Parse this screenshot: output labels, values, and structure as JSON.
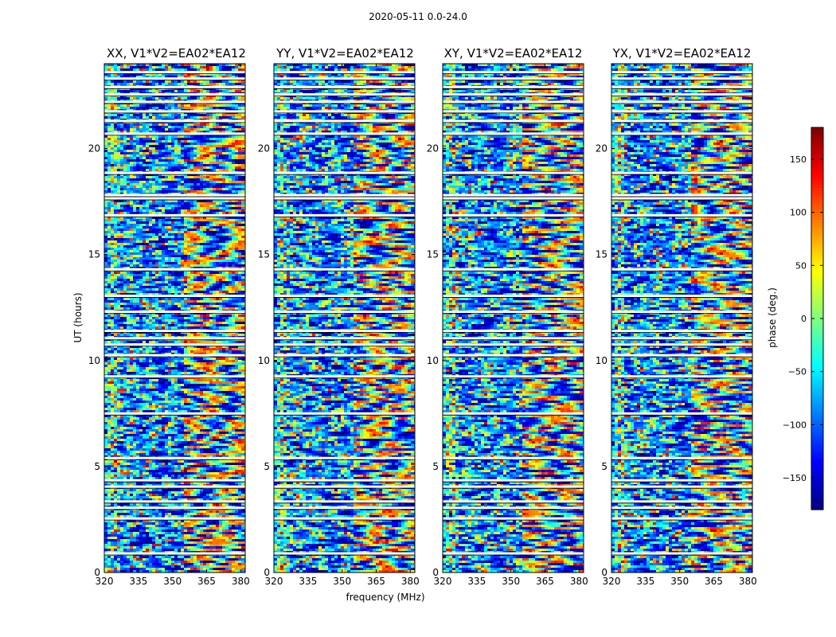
{
  "chart_data": {
    "type": "heatmap",
    "title": "2020-05-11 0.0-24.0",
    "xlabel": "frequency (MHz)",
    "ylabel": "UT (hours)",
    "x_ticks": [
      "320",
      "335",
      "350",
      "365",
      "380"
    ],
    "y_ticks": [
      "0",
      "5",
      "10",
      "15",
      "20"
    ],
    "xlim": [
      320,
      382
    ],
    "ylim": [
      0,
      24
    ],
    "panels": [
      {
        "title": "XX, V1*V2=EA02*EA12"
      },
      {
        "title": "YY, V1*V2=EA02*EA12"
      },
      {
        "title": "XY, V1*V2=EA02*EA12"
      },
      {
        "title": "YX, V1*V2=EA02*EA12"
      }
    ],
    "colorbar": {
      "label": "phase (deg.)",
      "colormap": "jet",
      "range": [
        -180,
        180
      ],
      "ticks": [
        "150",
        "100",
        "50",
        "0",
        "−50",
        "−100",
        "−150"
      ]
    },
    "flagged_ut_gaps": [
      0.9,
      2.55,
      3.05,
      3.35,
      4.05,
      4.35,
      5.4,
      7.5,
      9.25,
      10.25,
      10.75,
      11.05,
      11.4,
      12.3,
      13.05,
      14.3,
      16.85,
      17.65,
      17.8,
      18.85,
      20.7,
      21.3,
      21.75,
      22.2,
      22.55,
      22.9,
      23.3,
      23.6
    ]
  }
}
